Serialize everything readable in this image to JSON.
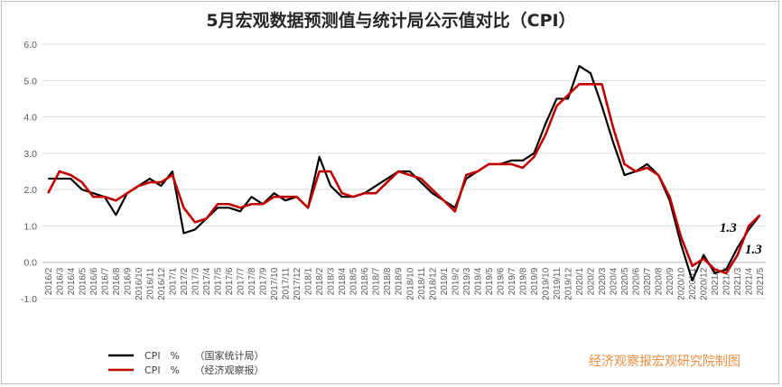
{
  "chart_data": {
    "type": "line",
    "title": "5月宏观数据预测值与统计局公示值对比（CPI）",
    "xlabel": "",
    "ylabel": "",
    "ylim": [
      -1.0,
      6.0
    ],
    "yticks": [
      "6.0",
      "5.0",
      "4.0",
      "3.0",
      "2.0",
      "1.0",
      "0.0",
      "-1.0"
    ],
    "grid": true,
    "legend_position": "bottom-left",
    "categories": [
      "2016/2",
      "2016/3",
      "2016/4",
      "2016/5",
      "2016/6",
      "2016/7",
      "2016/8",
      "2016/9",
      "2016/10",
      "2016/11",
      "2016/12",
      "2017/1",
      "2017/2",
      "2017/3",
      "2017/4",
      "2017/5",
      "2017/6",
      "2017/7",
      "2017/8",
      "2017/9",
      "2017/10",
      "2017/11",
      "2017/12",
      "2018/1",
      "2018/2",
      "2018/3",
      "2018/4",
      "2018/5",
      "2018/6",
      "2018/7",
      "2018/8",
      "2018/9",
      "2018/10",
      "2018/11",
      "2018/12",
      "2019/1",
      "2019/2",
      "2019/3",
      "2019/4",
      "2019/5",
      "2019/6",
      "2019/7",
      "2019/8",
      "2019/9",
      "2019/10",
      "2019/11",
      "2019/12",
      "2020/1",
      "2020/2",
      "2020/3",
      "2020/4",
      "2020/5",
      "2020/6",
      "2020/7",
      "2020/8",
      "2020/9",
      "2020/10",
      "2020/11",
      "2020/12",
      "2021/1",
      "2021/2",
      "2021/3",
      "2021/4",
      "2021/5"
    ],
    "series": [
      {
        "name": "CPI　%　　（国家统计局）",
        "color": "#000000",
        "values": [
          2.3,
          2.3,
          2.3,
          2.0,
          1.9,
          1.8,
          1.3,
          1.9,
          2.1,
          2.3,
          2.1,
          2.5,
          0.8,
          0.9,
          1.2,
          1.5,
          1.5,
          1.4,
          1.8,
          1.6,
          1.9,
          1.7,
          1.8,
          1.5,
          2.9,
          2.1,
          1.8,
          1.8,
          1.9,
          2.1,
          2.3,
          2.5,
          2.5,
          2.2,
          1.9,
          1.7,
          1.5,
          2.3,
          2.5,
          2.7,
          2.7,
          2.8,
          2.8,
          3.0,
          3.8,
          4.5,
          4.5,
          5.4,
          5.2,
          4.3,
          3.3,
          2.4,
          2.5,
          2.7,
          2.4,
          1.7,
          0.5,
          -0.5,
          0.2,
          -0.3,
          -0.2,
          0.4,
          0.9,
          1.3
        ]
      },
      {
        "name": "CPI　%　　（经济观察报）",
        "color": "#c00000",
        "values": [
          1.9,
          2.5,
          2.4,
          2.2,
          1.8,
          1.8,
          1.7,
          1.9,
          2.1,
          2.2,
          2.2,
          2.4,
          1.5,
          1.1,
          1.2,
          1.6,
          1.6,
          1.5,
          1.6,
          1.6,
          1.8,
          1.8,
          1.8,
          1.5,
          2.5,
          2.5,
          1.9,
          1.8,
          1.9,
          1.9,
          2.2,
          2.5,
          2.4,
          2.3,
          2.0,
          1.7,
          1.4,
          2.4,
          2.5,
          2.7,
          2.7,
          2.7,
          2.6,
          2.9,
          3.5,
          4.3,
          4.6,
          4.9,
          4.9,
          4.9,
          3.7,
          2.7,
          2.5,
          2.6,
          2.4,
          1.8,
          0.7,
          -0.1,
          0.1,
          -0.2,
          -0.3,
          0.2,
          1.0,
          1.3
        ]
      }
    ],
    "annotations": [
      "1.3",
      "1.3"
    ]
  },
  "watermark": "经济观察报宏观研究院制图"
}
